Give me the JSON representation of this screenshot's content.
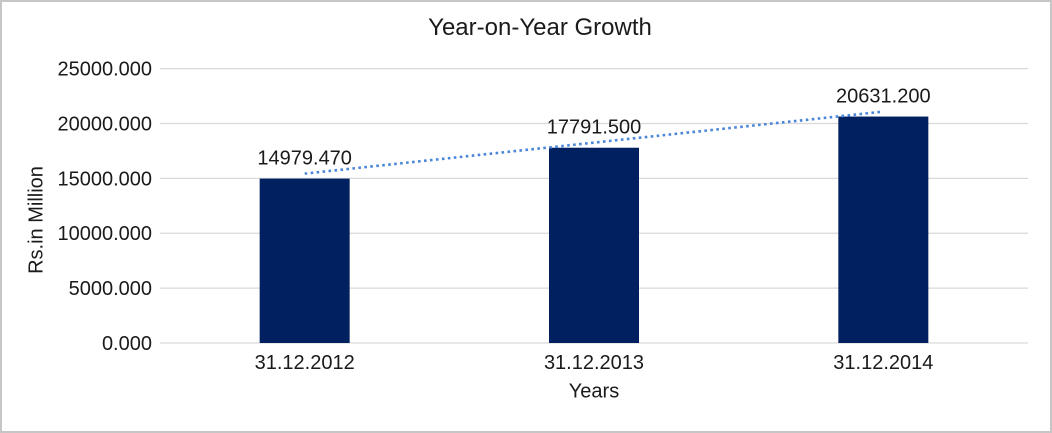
{
  "chart_data": {
    "type": "bar",
    "title": "Year-on-Year Growth",
    "xlabel": "Years",
    "ylabel": "Rs.in Million",
    "categories": [
      "31.12.2012",
      "31.12.2013",
      "31.12.2014"
    ],
    "values": [
      14979.47,
      17791.5,
      20631.2
    ],
    "data_labels": [
      "14979.470",
      "17791.500",
      "20631.200"
    ],
    "ylim": [
      0,
      25000
    ],
    "ytick_step": 5000,
    "ytick_labels": [
      "0.000",
      "5000.000",
      "10000.000",
      "15000.000",
      "20000.000",
      "25000.000"
    ],
    "grid": true,
    "legend": "none",
    "bar_color": "#002060",
    "gridline_color": "#d9d9d9",
    "text_color": "#1a1a1a",
    "frame_border_color": "#c6c6c6",
    "trendline": {
      "type": "linear",
      "style": "dotted",
      "color": "#4a86d8"
    }
  }
}
